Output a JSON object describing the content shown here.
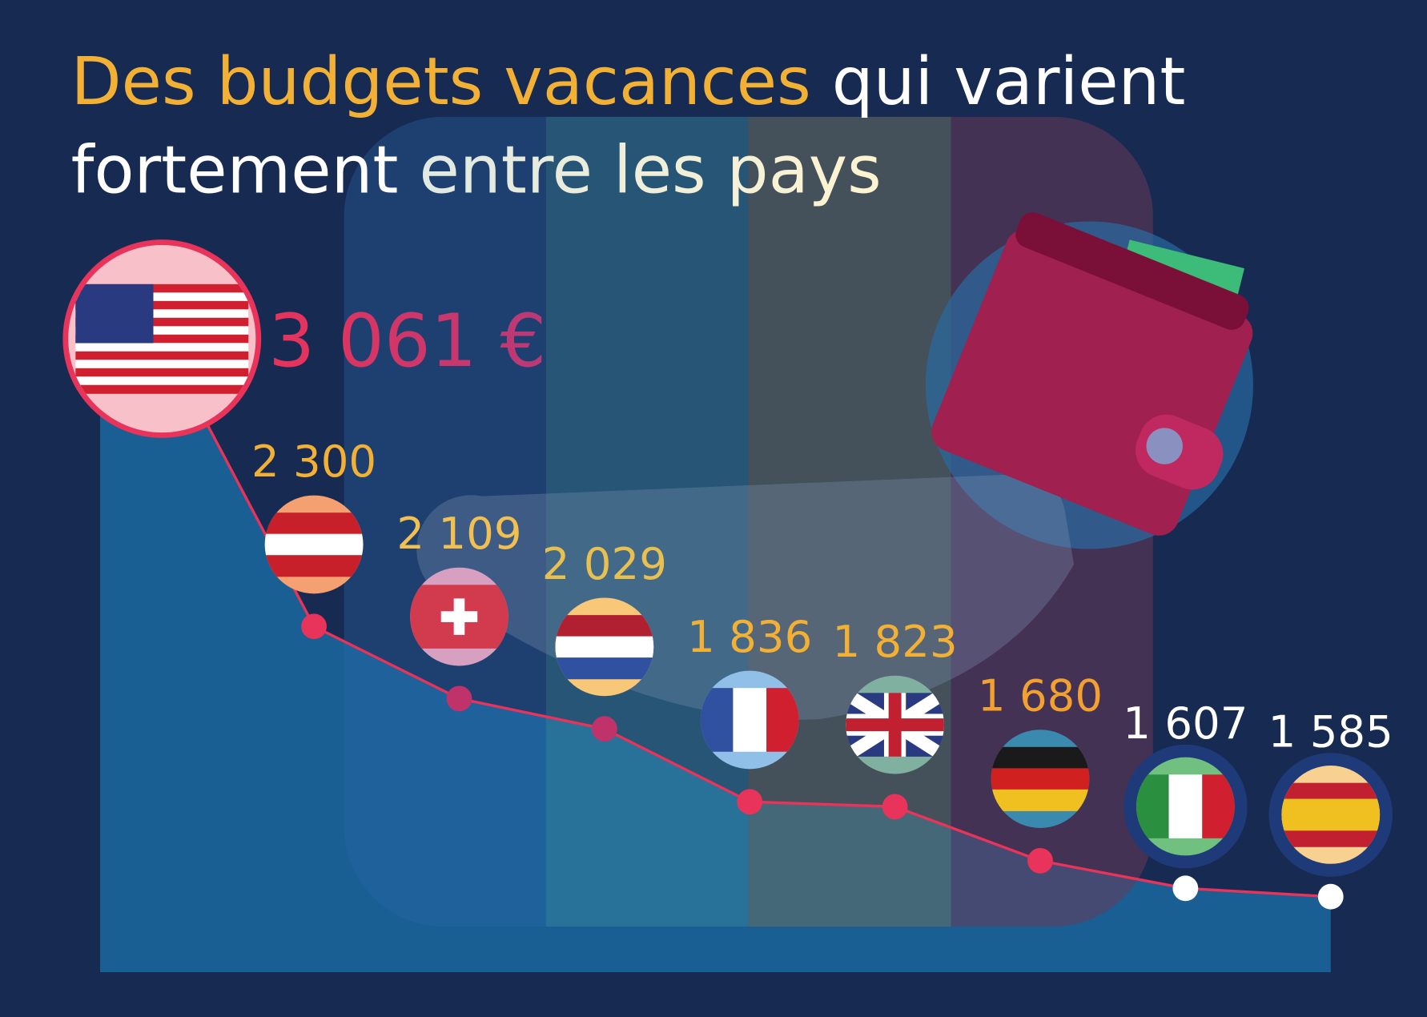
{
  "chart_data": {
    "type": "line",
    "title_parts": [
      "Des budgets vacances",
      "qui varient",
      "fortement",
      "entre les pays"
    ],
    "values": [
      3061,
      2300,
      2109,
      2029,
      1836,
      1823,
      1680,
      1607,
      1585
    ],
    "value_labels": [
      "3 061 €",
      "2 300",
      "2 109",
      "2 029",
      "1 836",
      "1 823",
      "1 680",
      "1 607",
      "1 585"
    ],
    "colors": [
      "#e8335a",
      "#e8335a",
      "#c0336a",
      "#c0336a",
      "#e8335a",
      "#e8335a",
      "#e8335a",
      "#ffffff",
      "#ffffff"
    ],
    "label_colors": [
      "#e8335a",
      "#f2b135",
      "#f2c050",
      "#e8c050",
      "#f2b135",
      "#f2b135",
      "#f2a030",
      "#ffffff",
      "#ffffff"
    ],
    "line_color": "#e8335a",
    "area_color": "#1a5f94"
  }
}
